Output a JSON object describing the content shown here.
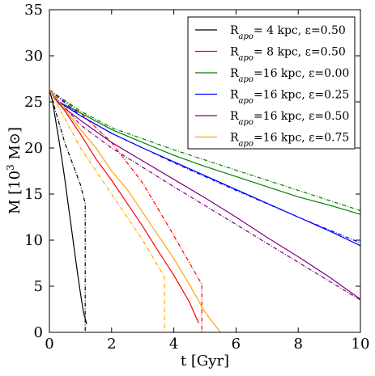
{
  "chart_data": {
    "type": "line",
    "xlabel": "t [Gyr]",
    "ylabel": "M [10³ M⊙]",
    "xlim": [
      0,
      10
    ],
    "ylim": [
      0,
      35
    ],
    "xticks": [
      0,
      2,
      4,
      6,
      8,
      10
    ],
    "yticks": [
      0,
      5,
      10,
      15,
      20,
      25,
      30,
      35
    ],
    "grid": false,
    "legend_position": "top-right",
    "series": [
      {
        "name": "R_apo= 4 kpc, ε=0.50",
        "color": "#000000",
        "x": [
          0,
          0.1,
          0.2,
          0.3,
          0.4,
          0.5,
          0.6,
          0.7,
          0.8,
          0.9,
          1.0,
          1.1,
          1.2
        ],
        "y": [
          26.3,
          25.1,
          23.0,
          21.0,
          18.8,
          16.5,
          14.0,
          11.5,
          9.0,
          6.5,
          4.2,
          2.1,
          0.9
        ],
        "model_x": [
          0,
          0.5,
          1.0,
          1.15,
          1.15
        ],
        "model_y": [
          26.3,
          20.5,
          16.0,
          14.0,
          0.0
        ]
      },
      {
        "name": "R_apo= 8 kpc, ε=0.50",
        "color": "#ff0000",
        "x": [
          0,
          0.5,
          1.0,
          1.5,
          2.0,
          2.5,
          3.0,
          3.5,
          4.0,
          4.5,
          4.8
        ],
        "y": [
          26.3,
          24.0,
          21.5,
          18.8,
          16.5,
          14.0,
          11.5,
          8.8,
          6.2,
          3.3,
          1.0
        ],
        "model_x": [
          0,
          1.0,
          2.0,
          3.0,
          4.0,
          4.9,
          4.9
        ],
        "model_y": [
          26.3,
          23.8,
          20.6,
          16.2,
          10.5,
          5.2,
          0.0
        ]
      },
      {
        "name": "R_apo=16 kpc, ε=0.00",
        "color": "#008000",
        "x": [
          0,
          0.3,
          1.0,
          2.0,
          3.0,
          4.0,
          5.0,
          6.0,
          7.0,
          8.0,
          9.0,
          10.0
        ],
        "y": [
          26.3,
          25.0,
          23.8,
          22.0,
          20.6,
          19.2,
          18.0,
          16.9,
          15.8,
          14.7,
          13.8,
          12.8
        ],
        "model_x": [
          0,
          1.0,
          2.0,
          4.0,
          6.0,
          8.0,
          10.0
        ],
        "model_y": [
          26.3,
          24.0,
          22.2,
          19.8,
          17.6,
          15.4,
          13.2
        ]
      },
      {
        "name": "R_apo=16 kpc, ε=0.25",
        "color": "#0000ff",
        "x": [
          0,
          0.3,
          1.0,
          2.0,
          3.0,
          4.0,
          5.0,
          6.0,
          7.0,
          8.0,
          9.0,
          10.0
        ],
        "y": [
          26.3,
          25.0,
          23.5,
          21.6,
          20.0,
          18.5,
          17.0,
          15.5,
          14.0,
          12.5,
          11.0,
          9.4
        ],
        "model_x": [
          0,
          1.0,
          2.0,
          4.0,
          6.0,
          8.0,
          10.0
        ],
        "model_y": [
          26.3,
          23.5,
          21.6,
          18.4,
          15.4,
          12.5,
          9.7
        ]
      },
      {
        "name": "R_apo=16 kpc, ε=0.50",
        "color": "#800080",
        "x": [
          0,
          0.3,
          1.0,
          2.0,
          3.0,
          4.0,
          5.0,
          6.0,
          7.0,
          8.0,
          9.0,
          10.0
        ],
        "y": [
          26.3,
          24.8,
          23.0,
          20.6,
          18.6,
          16.6,
          14.6,
          12.5,
          10.3,
          8.2,
          6.0,
          3.6
        ],
        "model_x": [
          0,
          1.0,
          2.0,
          4.0,
          6.0,
          8.0,
          10.0
        ],
        "model_y": [
          26.3,
          22.5,
          20.0,
          15.8,
          11.7,
          7.6,
          3.5
        ]
      },
      {
        "name": "R_apo=16 kpc, ε=0.75",
        "color": "#ffa500",
        "x": [
          0,
          0.5,
          1.0,
          1.5,
          2.0,
          2.5,
          3.0,
          3.5,
          4.0,
          4.5,
          5.0,
          5.5
        ],
        "y": [
          26.3,
          24.2,
          22.0,
          20.0,
          17.5,
          15.5,
          13.0,
          10.5,
          8.0,
          5.2,
          2.2,
          0.0
        ],
        "model_x": [
          0,
          1.0,
          2.0,
          3.0,
          3.7,
          3.7
        ],
        "model_y": [
          26.3,
          20.0,
          15.0,
          10.0,
          6.0,
          0.0
        ]
      }
    ]
  },
  "legend": {
    "entries": [
      {
        "prefix": "R",
        "sub": "apo",
        "suffix": "= 4 kpc, ε=0.50"
      },
      {
        "prefix": "R",
        "sub": "apo",
        "suffix": "= 8 kpc, ε=0.50"
      },
      {
        "prefix": "R",
        "sub": "apo",
        "suffix": "=16 kpc, ε=0.00"
      },
      {
        "prefix": "R",
        "sub": "apo",
        "suffix": "=16 kpc, ε=0.25"
      },
      {
        "prefix": "R",
        "sub": "apo",
        "suffix": "=16 kpc, ε=0.50"
      },
      {
        "prefix": "R",
        "sub": "apo",
        "suffix": "=16 kpc, ε=0.75"
      }
    ]
  },
  "axis_labels": {
    "x": "t [Gyr]",
    "y_prefix": "M [10",
    "y_sup": "3",
    "y_suffix": " M⊙]"
  }
}
